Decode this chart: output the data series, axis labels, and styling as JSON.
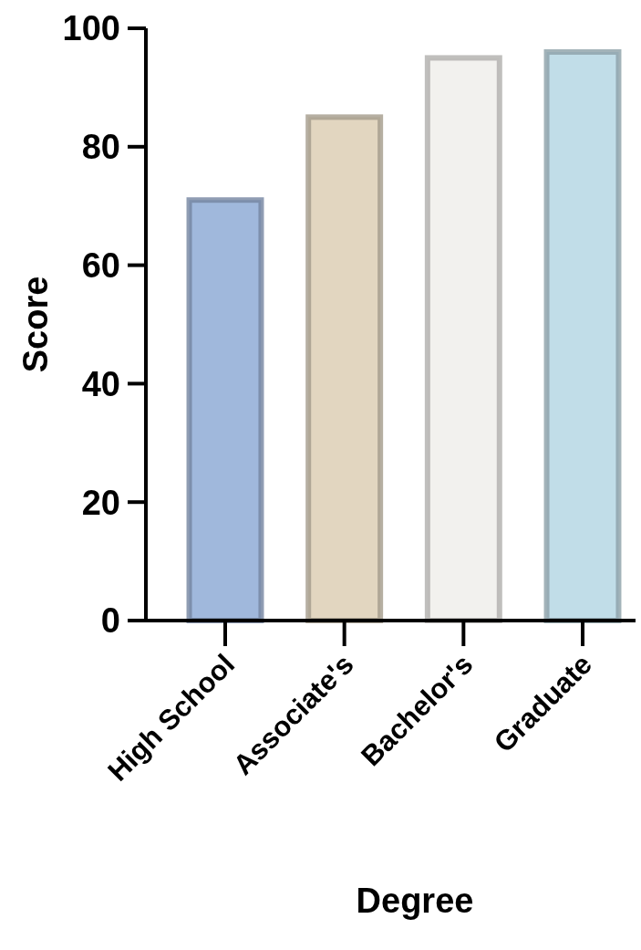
{
  "chart_data": {
    "type": "bar",
    "xlabel": "Degree",
    "ylabel": "Score",
    "categories": [
      "High School",
      "Associate's",
      "Bachelor's",
      "Graduate"
    ],
    "values": [
      71,
      85,
      95,
      96
    ],
    "colors": [
      "#a0b8dc",
      "#e2d6c0",
      "#f2f1ee",
      "#c1dde8"
    ],
    "ylim": [
      0,
      100
    ],
    "yticks": [
      0,
      20,
      40,
      60,
      80,
      100
    ],
    "grid": false
  }
}
